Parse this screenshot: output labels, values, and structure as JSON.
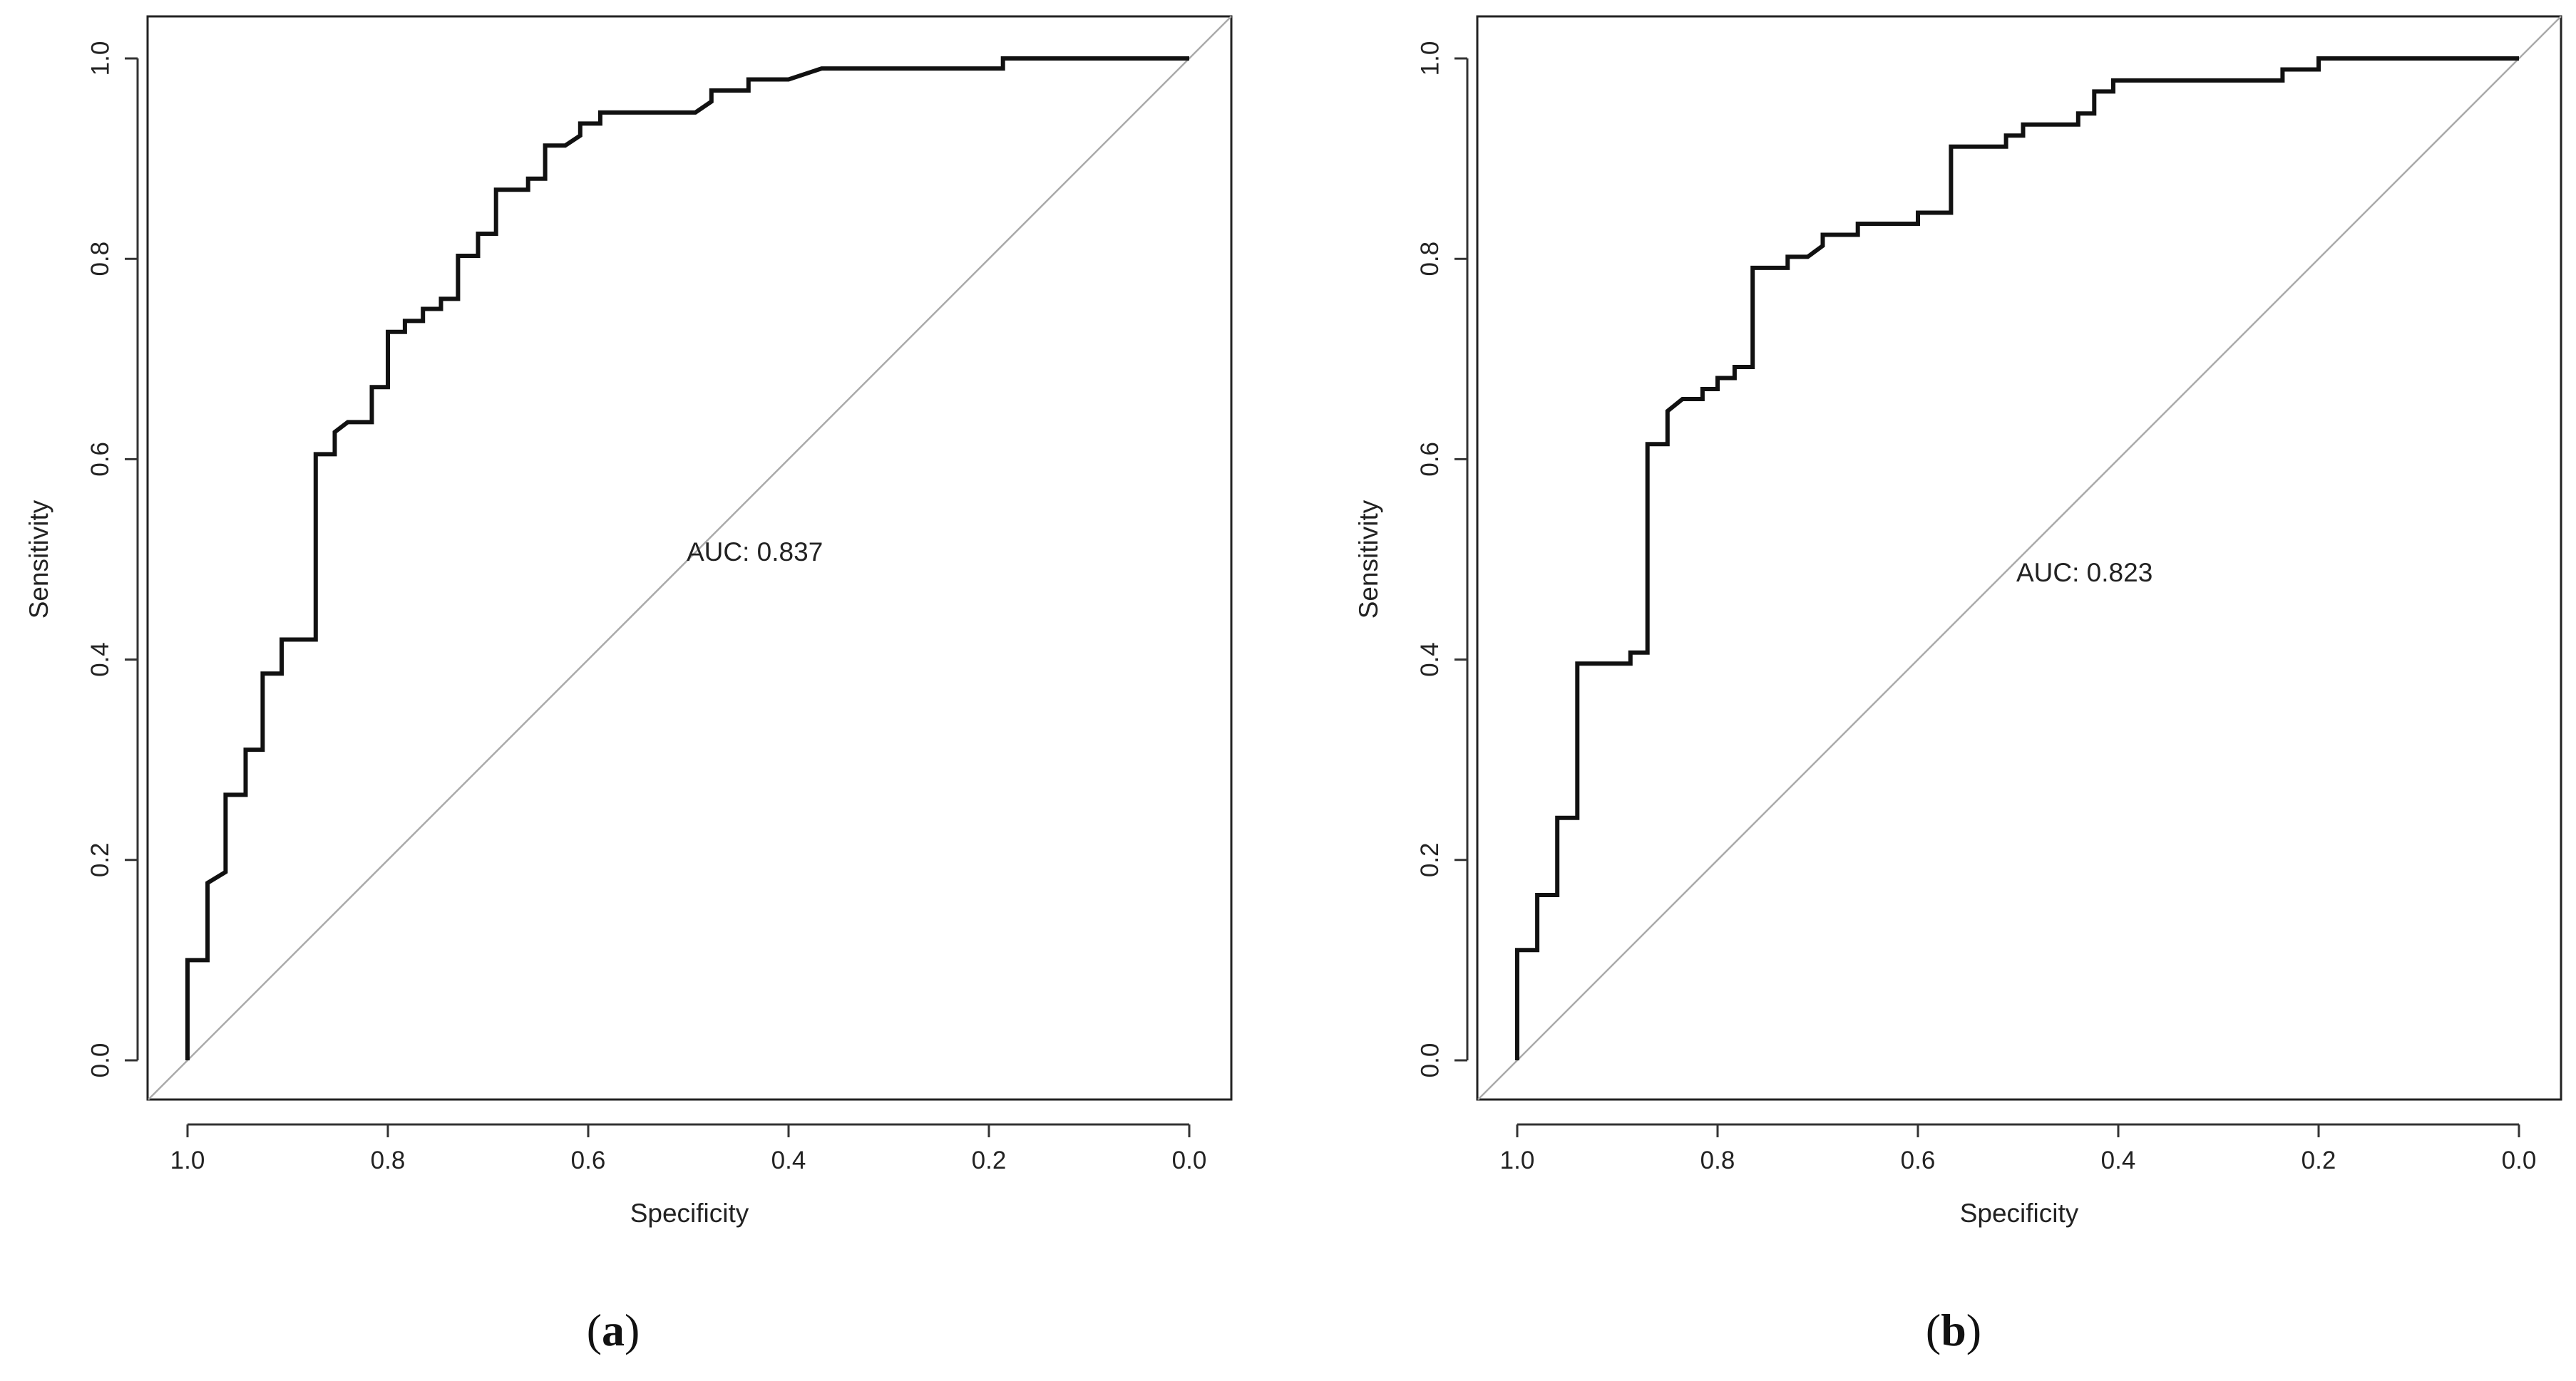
{
  "chart_data": [
    {
      "type": "line",
      "panel_label": "a",
      "xlabel": "Specificity",
      "ylabel": "Sensitivity",
      "auc_text": "AUC: 0.837",
      "xlim": [
        1.0,
        0.0
      ],
      "ylim": [
        0.0,
        1.0
      ],
      "x_ticks": [
        "1.0",
        "0.8",
        "0.6",
        "0.4",
        "0.2",
        "0.0"
      ],
      "y_ticks": [
        "0.0",
        "0.2",
        "0.4",
        "0.6",
        "0.8",
        "1.0"
      ],
      "reference_line": [
        [
          1.0,
          0.0
        ],
        [
          0.0,
          1.0
        ]
      ],
      "series": [
        {
          "name": "ROC",
          "points": [
            [
              1.0,
              0.0
            ],
            [
              1.0,
              0.1
            ],
            [
              0.98,
              0.1
            ],
            [
              0.98,
              0.177
            ],
            [
              0.962,
              0.188
            ],
            [
              0.962,
              0.265
            ],
            [
              0.942,
              0.265
            ],
            [
              0.942,
              0.31
            ],
            [
              0.925,
              0.31
            ],
            [
              0.925,
              0.386
            ],
            [
              0.906,
              0.386
            ],
            [
              0.906,
              0.42
            ],
            [
              0.872,
              0.42
            ],
            [
              0.872,
              0.605
            ],
            [
              0.853,
              0.605
            ],
            [
              0.853,
              0.627
            ],
            [
              0.84,
              0.637
            ],
            [
              0.816,
              0.637
            ],
            [
              0.816,
              0.672
            ],
            [
              0.8,
              0.672
            ],
            [
              0.8,
              0.727
            ],
            [
              0.783,
              0.727
            ],
            [
              0.783,
              0.738
            ],
            [
              0.765,
              0.738
            ],
            [
              0.765,
              0.75
            ],
            [
              0.747,
              0.75
            ],
            [
              0.747,
              0.76
            ],
            [
              0.73,
              0.76
            ],
            [
              0.73,
              0.803
            ],
            [
              0.71,
              0.803
            ],
            [
              0.71,
              0.825
            ],
            [
              0.692,
              0.825
            ],
            [
              0.692,
              0.869
            ],
            [
              0.66,
              0.869
            ],
            [
              0.66,
              0.88
            ],
            [
              0.643,
              0.88
            ],
            [
              0.643,
              0.913
            ],
            [
              0.623,
              0.913
            ],
            [
              0.608,
              0.923
            ],
            [
              0.608,
              0.935
            ],
            [
              0.588,
              0.935
            ],
            [
              0.588,
              0.946
            ],
            [
              0.493,
              0.946
            ],
            [
              0.477,
              0.957
            ],
            [
              0.477,
              0.968
            ],
            [
              0.44,
              0.968
            ],
            [
              0.44,
              0.979
            ],
            [
              0.4,
              0.979
            ],
            [
              0.367,
              0.99
            ],
            [
              0.186,
              0.99
            ],
            [
              0.186,
              1.0
            ],
            [
              0.0,
              1.0
            ]
          ]
        }
      ]
    },
    {
      "type": "line",
      "panel_label": "b",
      "xlabel": "Specificity",
      "ylabel": "Sensitivity",
      "auc_text": "AUC: 0.823",
      "xlim": [
        1.0,
        0.0
      ],
      "ylim": [
        0.0,
        1.0
      ],
      "x_ticks": [
        "1.0",
        "0.8",
        "0.6",
        "0.4",
        "0.2",
        "0.0"
      ],
      "y_ticks": [
        "0.0",
        "0.2",
        "0.4",
        "0.6",
        "0.8",
        "1.0"
      ],
      "reference_line": [
        [
          1.0,
          0.0
        ],
        [
          0.0,
          1.0
        ]
      ],
      "series": [
        {
          "name": "ROC",
          "points": [
            [
              1.0,
              0.0
            ],
            [
              1.0,
              0.11
            ],
            [
              0.98,
              0.11
            ],
            [
              0.98,
              0.165
            ],
            [
              0.96,
              0.165
            ],
            [
              0.96,
              0.242
            ],
            [
              0.94,
              0.242
            ],
            [
              0.94,
              0.396
            ],
            [
              0.887,
              0.396
            ],
            [
              0.887,
              0.407
            ],
            [
              0.87,
              0.407
            ],
            [
              0.87,
              0.615
            ],
            [
              0.85,
              0.615
            ],
            [
              0.85,
              0.648
            ],
            [
              0.835,
              0.66
            ],
            [
              0.815,
              0.66
            ],
            [
              0.815,
              0.67
            ],
            [
              0.8,
              0.67
            ],
            [
              0.8,
              0.681
            ],
            [
              0.783,
              0.681
            ],
            [
              0.783,
              0.692
            ],
            [
              0.765,
              0.692
            ],
            [
              0.765,
              0.791
            ],
            [
              0.73,
              0.791
            ],
            [
              0.73,
              0.802
            ],
            [
              0.71,
              0.802
            ],
            [
              0.695,
              0.813
            ],
            [
              0.695,
              0.824
            ],
            [
              0.66,
              0.824
            ],
            [
              0.66,
              0.835
            ],
            [
              0.6,
              0.835
            ],
            [
              0.6,
              0.846
            ],
            [
              0.567,
              0.846
            ],
            [
              0.567,
              0.912
            ],
            [
              0.512,
              0.912
            ],
            [
              0.512,
              0.923
            ],
            [
              0.495,
              0.923
            ],
            [
              0.495,
              0.934
            ],
            [
              0.44,
              0.934
            ],
            [
              0.44,
              0.945
            ],
            [
              0.424,
              0.945
            ],
            [
              0.424,
              0.967
            ],
            [
              0.405,
              0.967
            ],
            [
              0.405,
              0.978
            ],
            [
              0.236,
              0.978
            ],
            [
              0.236,
              0.989
            ],
            [
              0.2,
              0.989
            ],
            [
              0.2,
              1.0
            ],
            [
              0.0,
              1.0
            ]
          ]
        }
      ]
    }
  ]
}
